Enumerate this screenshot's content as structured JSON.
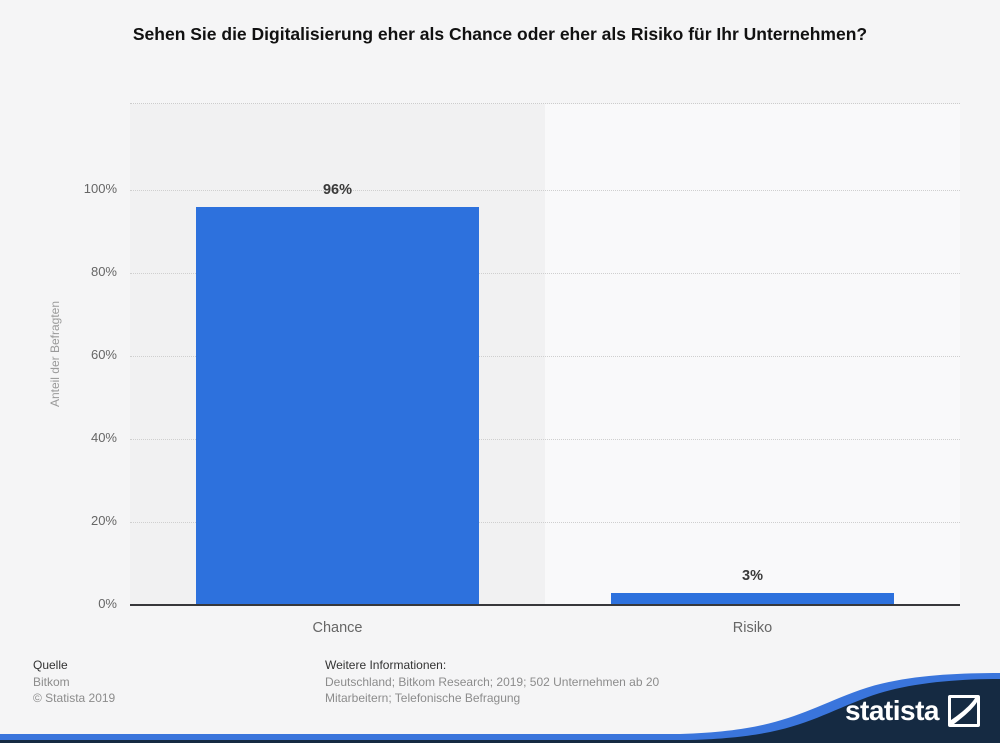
{
  "title": "Sehen Sie die Digitalisierung eher als Chance oder eher als Risiko für Ihr Unternehmen?",
  "chart_data": {
    "type": "bar",
    "categories": [
      "Chance",
      "Risiko"
    ],
    "values": [
      96,
      3
    ],
    "value_labels": [
      "96%",
      "3%"
    ],
    "title": "Sehen Sie die Digitalisierung eher als Chance oder eher als Risiko für Ihr Unternehmen?",
    "xlabel": "",
    "ylabel": "Anteil der Befragten",
    "ylim": [
      0,
      100
    ],
    "yticks": [
      "0%",
      "20%",
      "40%",
      "60%",
      "80%",
      "100%"
    ],
    "grid": "horizontal dotted",
    "legend": "none",
    "bar_color": "#2d71dd"
  },
  "footer": {
    "source_label": "Quelle",
    "source_name": "Bitkom",
    "copyright": "© Statista 2019",
    "info_label": "Weitere Informationen:",
    "info_line1": "Deutschland; Bitkom Research; 2019; 502 Unternehmen ab 20",
    "info_line2": "Mitarbeitern; Telefonische Befragung"
  },
  "branding": {
    "logo_text": "statista",
    "brand_navy": "#152a42",
    "brand_blue": "#3a75dc"
  },
  "colors": {
    "page_background": "#f5f5f6",
    "stripe_left": "#f1f1f2",
    "stripe_right": "#f9f9fa",
    "bar": "#2d71dd",
    "axis": "#37383b",
    "grid": "#cfcfcf"
  }
}
